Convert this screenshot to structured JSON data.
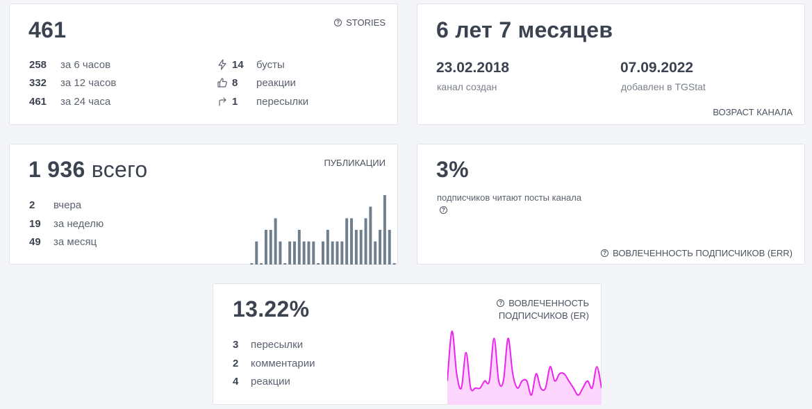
{
  "stories": {
    "value": "461",
    "tag": "STORIES",
    "rows": [
      {
        "num": "258",
        "label": "за 6 часов"
      },
      {
        "num": "332",
        "label": "за 12 часов"
      },
      {
        "num": "461",
        "label": "за 24 часа"
      }
    ],
    "reactions": [
      {
        "icon": "lightning-icon",
        "num": "14",
        "label": "бусты"
      },
      {
        "icon": "thumbs-up-icon",
        "num": "8",
        "label": "реакции"
      },
      {
        "icon": "share-arrow-icon",
        "num": "1",
        "label": "пересылки"
      }
    ]
  },
  "age": {
    "value": "6 лет 7 месяцев",
    "created_date": "23.02.2018",
    "created_label": "канал создан",
    "added_date": "07.09.2022",
    "added_label": "добавлен в TGStat",
    "tag": "ВОЗРАСТ КАНАЛА"
  },
  "publications": {
    "value": "1 936",
    "value_suffix": "всего",
    "tag": "ПУБЛИКАЦИИ",
    "rows": [
      {
        "num": "2",
        "label": "вчера"
      },
      {
        "num": "19",
        "label": "за неделю"
      },
      {
        "num": "49",
        "label": "за месяц"
      }
    ]
  },
  "err": {
    "value": "3%",
    "description": "подписчиков читают посты канала",
    "tag": "ВОВЛЕЧЕННОСТЬ ПОДПИСЧИКОВ (ERR)"
  },
  "er": {
    "value": "13.22%",
    "tag_line1": "ВОВЛЕЧЕННОСТЬ",
    "tag_line2": "ПОДПИСЧИКОВ (ER)",
    "rows": [
      {
        "num": "3",
        "label": "пересылки"
      },
      {
        "num": "2",
        "label": "комментарии"
      },
      {
        "num": "4",
        "label": "реакции"
      }
    ]
  },
  "colors": {
    "bar": "#6f7f8e",
    "er_line": "#ee22ee",
    "er_fill": "#fcd6fc"
  },
  "chart_data": [
    {
      "type": "bar",
      "values": [
        0,
        2,
        0,
        3,
        3,
        4,
        2,
        0,
        2,
        2,
        3,
        2,
        2,
        2,
        0,
        2,
        3,
        2,
        2,
        2,
        4,
        4,
        3,
        3,
        4,
        5,
        2,
        3,
        6,
        3,
        0
      ]
    },
    {
      "type": "area",
      "values": [
        2,
        9,
        3,
        1,
        6,
        1,
        1,
        1,
        2,
        2,
        8,
        2,
        2,
        8,
        3,
        1,
        2,
        2,
        0,
        3,
        1,
        1,
        4,
        2,
        3,
        3,
        2,
        1,
        0,
        1,
        2,
        1,
        4,
        1
      ]
    }
  ]
}
